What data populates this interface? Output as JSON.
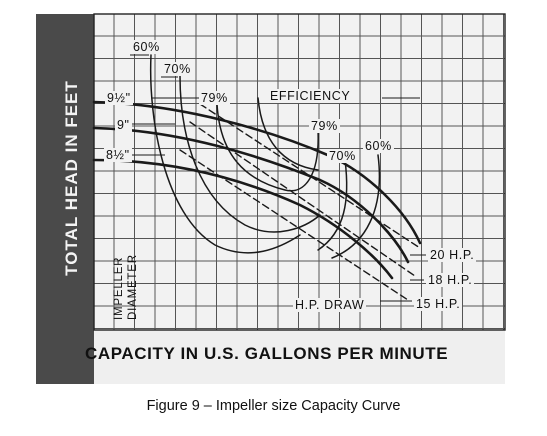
{
  "figure": {
    "caption": "Figure 9 – Impeller size Capacity Curve",
    "y_axis_label": "TOTAL HEAD IN FEET",
    "x_axis_label": "CAPACITY IN U.S. GALLONS PER MINUTE",
    "impeller_label_line1": "IMPELLER",
    "impeller_label_line2": "DIAMETER",
    "impeller_sizes": [
      "9 1/2\"",
      "9\"",
      "8 1/2\""
    ],
    "efficiency_label": "EFFICIENCY",
    "efficiency_contours": [
      "60%",
      "70%",
      "79%",
      "79%",
      "70%",
      "60%"
    ],
    "hp_draw_label": "H.P. DRAW",
    "hp_lines": [
      "20 H.P.",
      "18 H.P.",
      "15 H.P."
    ]
  },
  "chart_data": {
    "type": "line",
    "title": "",
    "xlabel": "CAPACITY IN U.S. GALLONS PER MINUTE",
    "ylabel": "TOTAL HEAD IN FEET",
    "tick_labels_shown": false,
    "grid": true,
    "series": [
      {
        "name": "9 1/2\"",
        "kind": "head-capacity"
      },
      {
        "name": "9\"",
        "kind": "head-capacity"
      },
      {
        "name": "8 1/2\"",
        "kind": "head-capacity"
      },
      {
        "name": "60%",
        "kind": "efficiency"
      },
      {
        "name": "70%",
        "kind": "efficiency"
      },
      {
        "name": "79%",
        "kind": "efficiency"
      },
      {
        "name": "20 H.P.",
        "kind": "power"
      },
      {
        "name": "18 H.P.",
        "kind": "power"
      },
      {
        "name": "15 H.P.",
        "kind": "power"
      }
    ],
    "colors": {
      "ink": "#1a1a1a",
      "panel": "#f2f2f2",
      "band": "#4a4a4a"
    }
  }
}
